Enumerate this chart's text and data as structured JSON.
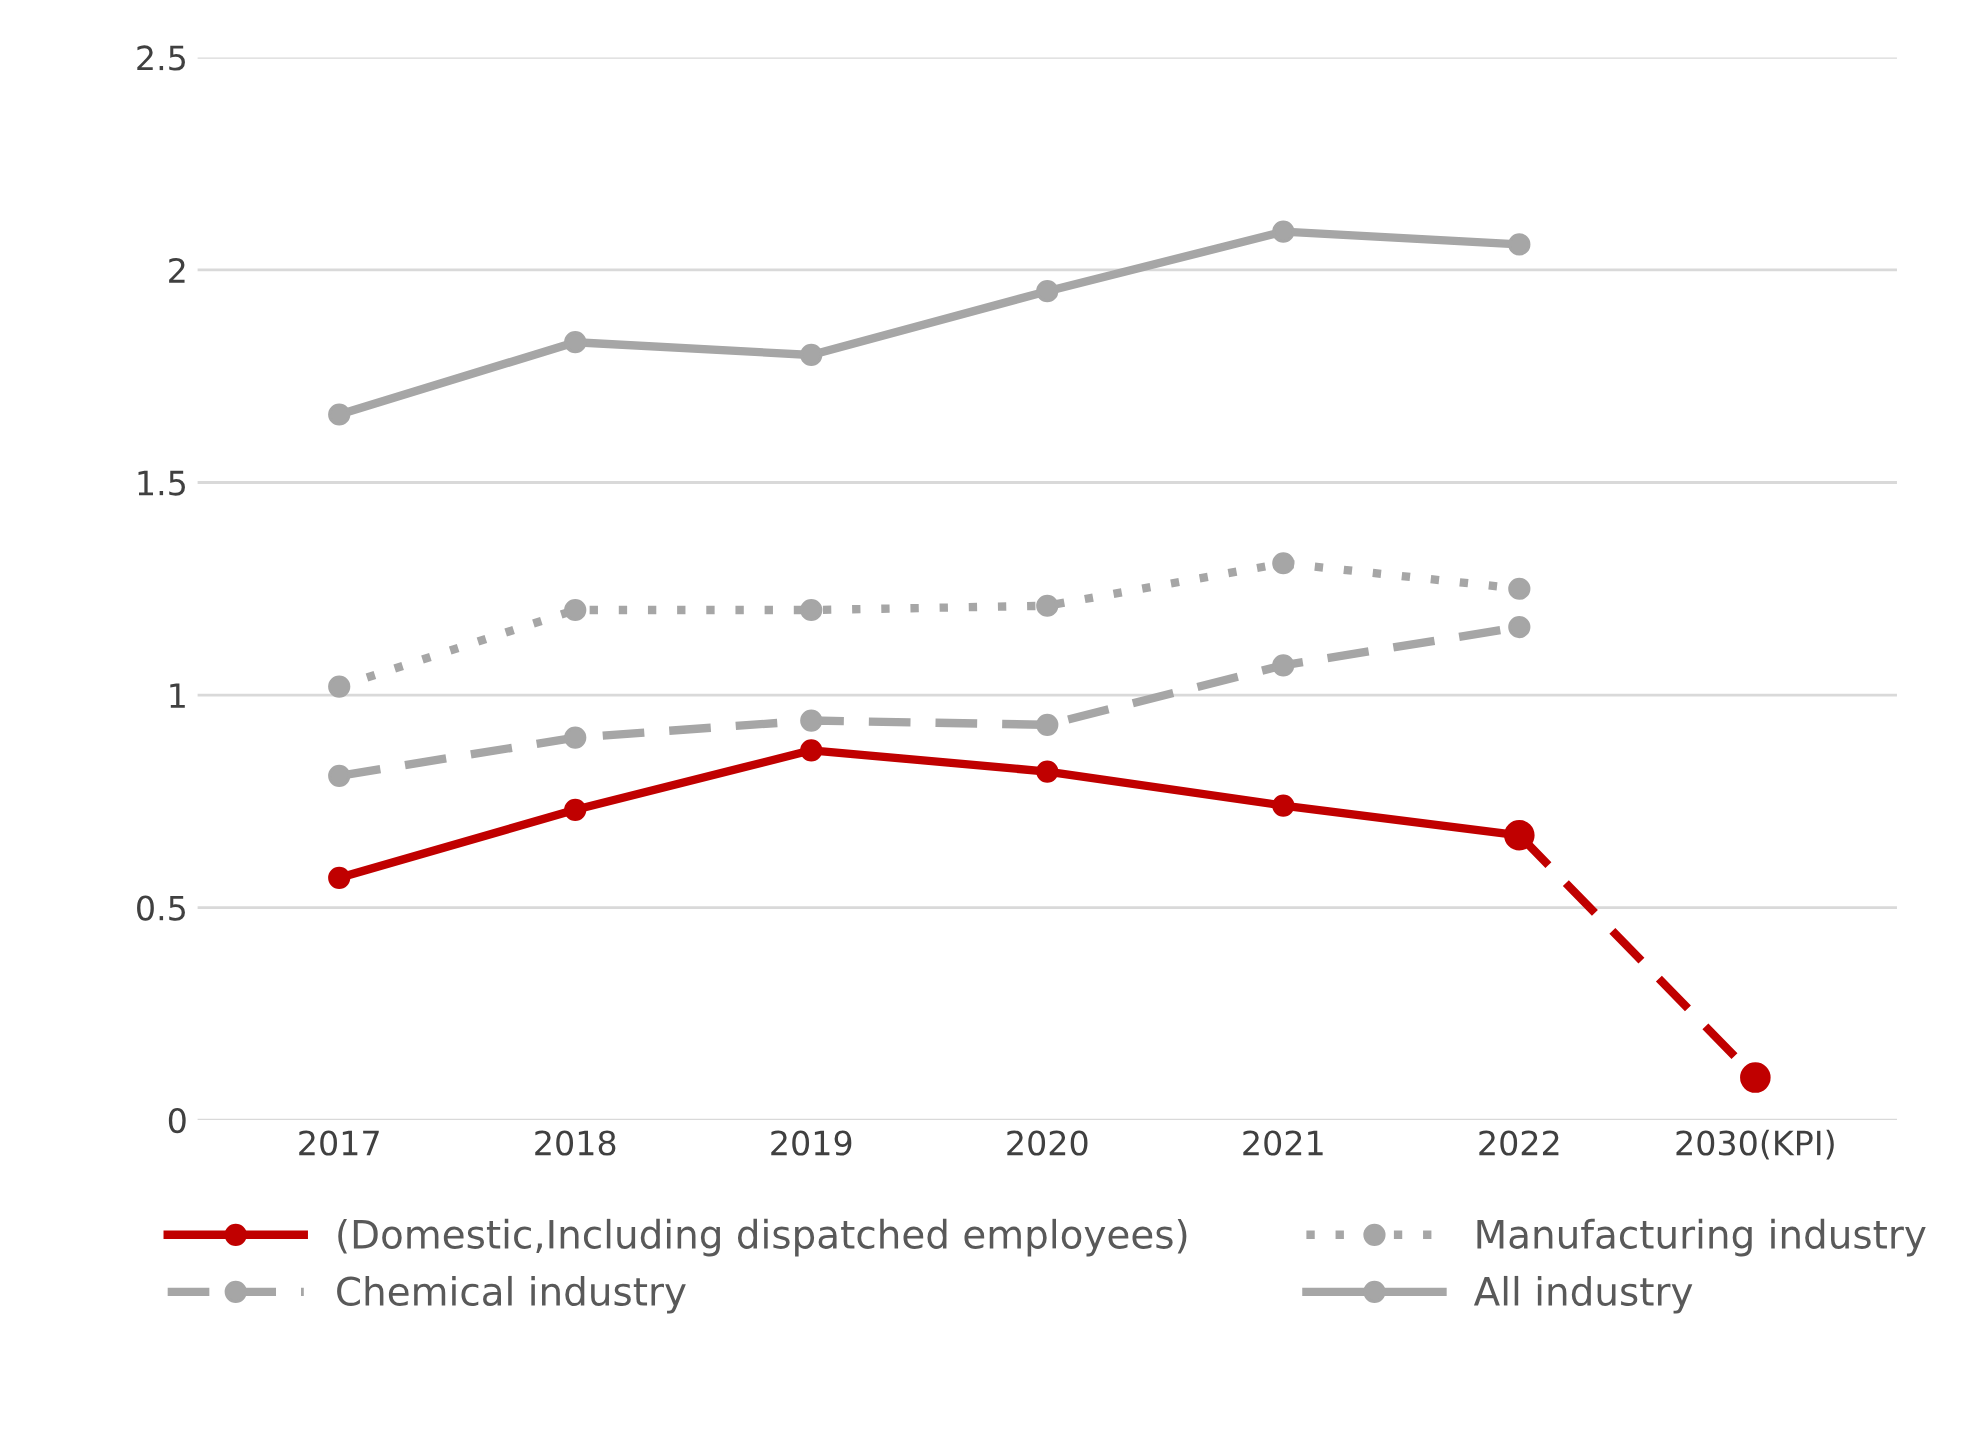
{
  "chart_data": {
    "type": "line",
    "categories": [
      "2017",
      "2018",
      "2019",
      "2020",
      "2021",
      "2022",
      "2030(KPI)"
    ],
    "series": [
      {
        "name": "(Domestic,Including dispatched employees)",
        "color": "#c00000",
        "values": [
          0.57,
          0.73,
          0.87,
          0.82,
          0.74,
          0.67,
          null
        ],
        "line_style": "solid"
      },
      {
        "color": "#c00000",
        "values": [
          null,
          null,
          null,
          null,
          null,
          0.67,
          0.1
        ],
        "line_style": "dashed"
      },
      {
        "name": "Chemical industry",
        "color": "#a6a6a6",
        "values": [
          0.81,
          0.9,
          0.94,
          0.93,
          1.07,
          1.16,
          null
        ],
        "line_style": "dashed"
      },
      {
        "name": "Manufacturing industry",
        "color": "#a6a6a6",
        "values": [
          1.02,
          1.2,
          1.2,
          1.21,
          1.31,
          1.25,
          null
        ],
        "line_style": "dotted"
      },
      {
        "name": "All industry",
        "color": "#a6a6a6",
        "values": [
          1.66,
          1.83,
          1.8,
          1.95,
          2.09,
          2.06,
          null
        ],
        "line_style": "solid"
      }
    ],
    "ylim": [
      0,
      2.5
    ],
    "yticks": [
      0,
      0.5,
      1,
      1.5,
      2,
      2.5
    ],
    "grid": "y",
    "legend": "bottom",
    "marker": "circle"
  }
}
